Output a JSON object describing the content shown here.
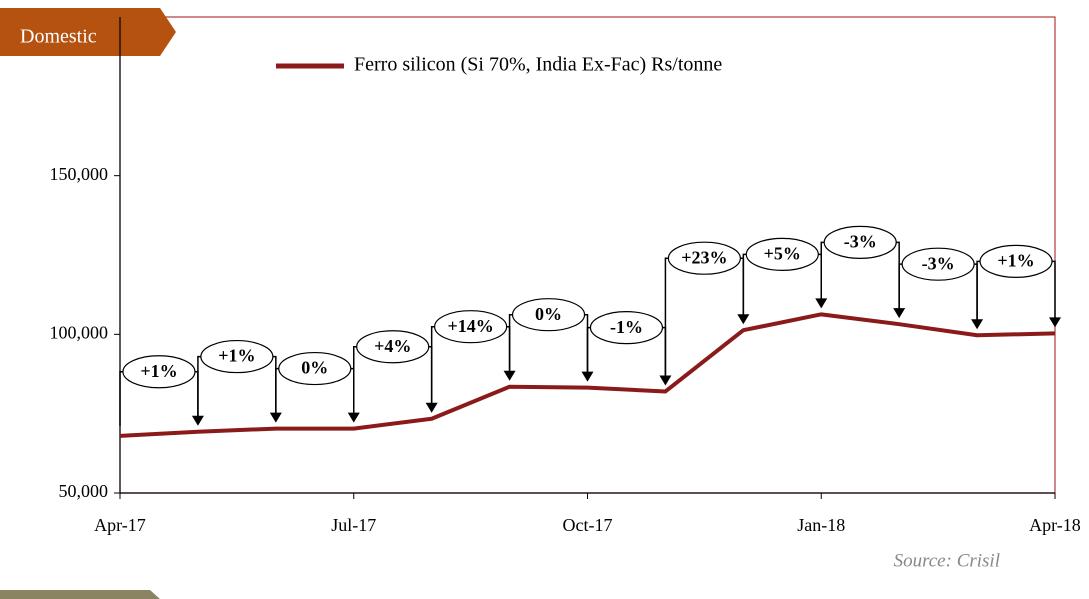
{
  "tag": "Domestic",
  "source": "Source: Crisil",
  "chart_data": {
    "type": "line",
    "categories": [
      "Apr-17",
      null,
      null,
      "Jul-17",
      null,
      null,
      "Oct-17",
      null,
      null,
      "Jan-18",
      null,
      null,
      "Apr-18"
    ],
    "series": [
      {
        "name": "Ferro silicon (Si 70%, India Ex-Fac) Rs/tonne",
        "color": "#8b1a1a",
        "values": [
          68000,
          69300,
          70300,
          70300,
          73400,
          83500,
          83200,
          82000,
          101300,
          106300,
          103200,
          99700,
          100300
        ]
      }
    ],
    "annotations": [
      "+1%",
      "+1%",
      "0%",
      "+4%",
      "+14%",
      "0%",
      "-1%",
      "+23%",
      "+5%",
      "-3%",
      "-3%",
      "+1%"
    ],
    "ylim": [
      50000,
      200000
    ],
    "yticks": [
      {
        "value": 50000,
        "label": "50,000"
      },
      {
        "value": 100000,
        "label": "100,000"
      },
      {
        "value": 150000,
        "label": "150,000"
      }
    ],
    "legend": "top"
  }
}
